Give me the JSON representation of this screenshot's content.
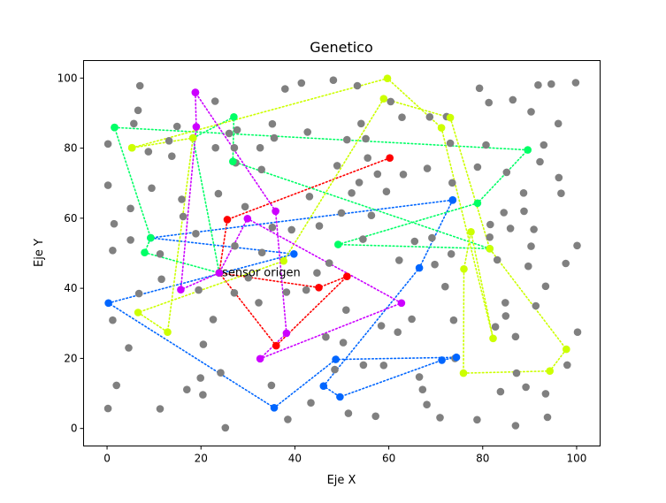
{
  "chart_data": {
    "type": "scatter",
    "title": "Genetico",
    "xlabel": "Eje X",
    "ylabel": "Eje Y",
    "xlim": [
      -5,
      105
    ],
    "ylim": [
      -5,
      105
    ],
    "xticks": [
      0,
      20,
      40,
      60,
      80,
      100
    ],
    "yticks": [
      0,
      20,
      40,
      60,
      80,
      100
    ],
    "xtick_labels": [
      "0",
      "20",
      "40",
      "60",
      "80",
      "100"
    ],
    "ytick_labels": [
      "0",
      "20",
      "40",
      "60",
      "80",
      "100"
    ],
    "grid": false,
    "annotations": [
      {
        "text": "sensor origen",
        "x": 24.5,
        "y": 44.5
      }
    ],
    "sensors": {
      "color": "#808080",
      "points": [
        [
          0.2,
          81.2
        ],
        [
          0.2,
          69.4
        ],
        [
          0.2,
          5.7
        ],
        [
          1.2,
          50.8
        ],
        [
          1.5,
          58.4
        ],
        [
          1.2,
          30.9
        ],
        [
          2,
          12.3
        ],
        [
          4.6,
          23
        ],
        [
          5,
          53.8
        ],
        [
          5,
          62.8
        ],
        [
          5.7,
          87
        ],
        [
          6.6,
          90.8
        ],
        [
          7,
          97.8
        ],
        [
          6.8,
          38.5
        ],
        [
          8.8,
          79
        ],
        [
          9.5,
          68.6
        ],
        [
          11.3,
          49.8
        ],
        [
          11.6,
          42.6
        ],
        [
          11.3,
          5.6
        ],
        [
          13.2,
          82.1
        ],
        [
          13.8,
          77.7
        ],
        [
          14.9,
          86.2
        ],
        [
          15.9,
          65.4
        ],
        [
          16.2,
          60.5
        ],
        [
          17,
          11.1
        ],
        [
          18.9,
          55.6
        ],
        [
          19.5,
          39.5
        ],
        [
          19.9,
          14.4
        ],
        [
          20.5,
          24
        ],
        [
          20.4,
          9.6
        ],
        [
          22.6,
          31.1
        ],
        [
          23,
          93.4
        ],
        [
          23.1,
          80.1
        ],
        [
          23.7,
          67
        ],
        [
          24.2,
          15.9
        ],
        [
          25.2,
          0.2
        ],
        [
          26,
          84.2
        ],
        [
          27.1,
          80.1
        ],
        [
          27.1,
          38.7
        ],
        [
          27.2,
          52.1
        ],
        [
          27.4,
          75.8
        ],
        [
          27.7,
          85.2
        ],
        [
          29.4,
          63.3
        ],
        [
          30.1,
          43
        ],
        [
          32.3,
          35.9
        ],
        [
          32.6,
          80.1
        ],
        [
          32.9,
          73.9
        ],
        [
          33,
          50.2
        ],
        [
          35.2,
          86.9
        ],
        [
          35.6,
          82.9
        ],
        [
          35.2,
          57.4
        ],
        [
          35,
          12.3
        ],
        [
          37.9,
          96.9
        ],
        [
          38.2,
          38.9
        ],
        [
          38.5,
          2.6
        ],
        [
          39.3,
          56.7
        ],
        [
          41.4,
          98.6
        ],
        [
          42.4,
          39.5
        ],
        [
          42.7,
          84.6
        ],
        [
          43.1,
          66.2
        ],
        [
          43.4,
          7.3
        ],
        [
          44.7,
          44.4
        ],
        [
          45.2,
          57.8
        ],
        [
          46.6,
          26.1
        ],
        [
          47.3,
          47.2
        ],
        [
          48.2,
          99.4
        ],
        [
          48.5,
          16.8
        ],
        [
          49,
          75
        ],
        [
          49.9,
          61.5
        ],
        [
          50.3,
          24.5
        ],
        [
          50.9,
          33.8
        ],
        [
          51.1,
          82.4
        ],
        [
          51.4,
          4.3
        ],
        [
          52.1,
          67.2
        ],
        [
          53.3,
          97.8
        ],
        [
          53.7,
          70.2
        ],
        [
          54.1,
          87
        ],
        [
          54.5,
          54
        ],
        [
          54.6,
          18.1
        ],
        [
          55.1,
          82.7
        ],
        [
          55.5,
          77.2
        ],
        [
          56.3,
          60.8
        ],
        [
          57.2,
          3.5
        ],
        [
          57.6,
          72.6
        ],
        [
          58.4,
          29.3
        ],
        [
          58.9,
          18
        ],
        [
          59.5,
          67.6
        ],
        [
          60.4,
          93.3
        ],
        [
          61.9,
          27.5
        ],
        [
          62.2,
          48
        ],
        [
          62.8,
          88.8
        ],
        [
          63.1,
          72.5
        ],
        [
          64.9,
          31.2
        ],
        [
          65.5,
          53.4
        ],
        [
          66.5,
          14.7
        ],
        [
          67.2,
          11.1
        ],
        [
          68.1,
          6.8
        ],
        [
          68.7,
          88.9
        ],
        [
          68.2,
          74.2
        ],
        [
          69.2,
          54.4
        ],
        [
          69.8,
          46.8
        ],
        [
          70.9,
          3.1
        ],
        [
          72,
          40.5
        ],
        [
          72.3,
          89
        ],
        [
          73.1,
          81.4
        ],
        [
          73.5,
          70.1
        ],
        [
          73.8,
          30.9
        ],
        [
          73.3,
          49.8
        ],
        [
          74.1,
          20
        ],
        [
          78.9,
          74.6
        ],
        [
          79.3,
          97.1
        ],
        [
          78.8,
          2.5
        ],
        [
          80.7,
          80.9
        ],
        [
          81.3,
          93
        ],
        [
          81.5,
          54.6
        ],
        [
          81.6,
          58.2
        ],
        [
          82.7,
          29
        ],
        [
          83.1,
          48.1
        ],
        [
          83.8,
          10.5
        ],
        [
          84.5,
          61.6
        ],
        [
          84.8,
          35.9
        ],
        [
          84.9,
          32.1
        ],
        [
          85.1,
          73.1
        ],
        [
          85.9,
          57.1
        ],
        [
          86.4,
          93.8
        ],
        [
          87,
          0.8
        ],
        [
          87,
          26.2
        ],
        [
          87.2,
          15.8
        ],
        [
          88.7,
          67.2
        ],
        [
          88.8,
          62
        ],
        [
          89.2,
          11.8
        ],
        [
          89.7,
          46.3
        ],
        [
          90.3,
          90.4
        ],
        [
          90.3,
          52
        ],
        [
          90.9,
          56.8
        ],
        [
          91.3,
          35
        ],
        [
          91.8,
          98
        ],
        [
          92.2,
          76.1
        ],
        [
          93,
          80.9
        ],
        [
          93.4,
          40.6
        ],
        [
          93.4,
          9.9
        ],
        [
          93.8,
          3.2
        ],
        [
          94.6,
          98.3
        ],
        [
          96.1,
          87
        ],
        [
          96.2,
          71.6
        ],
        [
          96.7,
          67.1
        ],
        [
          97.7,
          47.1
        ],
        [
          98,
          18.1
        ],
        [
          99.8,
          98.7
        ],
        [
          100.1,
          52.2
        ],
        [
          100.2,
          27.5
        ]
      ]
    },
    "series": [
      {
        "color": "#ff0000",
        "points": [
          [
            60.2,
            77.2
          ],
          [
            25.6,
            59.6
          ],
          [
            23.9,
            44.4
          ],
          [
            45.1,
            40.2
          ],
          [
            51.1,
            43.4
          ],
          [
            36,
            23.6
          ],
          [
            23.9,
            44.4
          ]
        ]
      },
      {
        "color": "#0066ff",
        "points": [
          [
            73.6,
            65.2
          ],
          [
            9.3,
            54.4
          ],
          [
            39.8,
            49.8
          ],
          [
            0.3,
            35.8
          ],
          [
            35.6,
            5.9
          ],
          [
            48.7,
            19.7
          ],
          [
            74.4,
            20.3
          ],
          [
            71.3,
            19.5
          ],
          [
            49.6,
            9
          ],
          [
            46.1,
            12.1
          ],
          [
            66.5,
            45.8
          ],
          [
            73.6,
            65.2
          ]
        ]
      },
      {
        "color": "#00ff66",
        "points": [
          [
            1.6,
            85.9
          ],
          [
            89.6,
            79.5
          ],
          [
            78.9,
            64.3
          ],
          [
            49.2,
            52.5
          ],
          [
            81.5,
            51.3
          ],
          [
            26.8,
            76.2
          ],
          [
            27,
            88.9
          ],
          [
            18.3,
            82.9
          ],
          [
            23.9,
            44.4
          ],
          [
            8,
            50.2
          ],
          [
            9.3,
            54.4
          ],
          [
            1.6,
            85.9
          ]
        ]
      },
      {
        "color": "#ccff00",
        "points": [
          [
            5.3,
            80.1
          ],
          [
            59.7,
            99.9
          ],
          [
            71.2,
            85.8
          ],
          [
            82.2,
            25.7
          ],
          [
            77.5,
            56.1
          ],
          [
            76,
            45.5
          ],
          [
            75.9,
            15.8
          ],
          [
            94.3,
            16.4
          ],
          [
            97.8,
            22.6
          ],
          [
            81.5,
            51.3
          ],
          [
            73.1,
            88.7
          ],
          [
            58.9,
            94.1
          ],
          [
            37.6,
            47.8
          ],
          [
            6.6,
            33.1
          ],
          [
            12.9,
            27.5
          ],
          [
            18.3,
            82.9
          ],
          [
            5.3,
            80.1
          ]
        ]
      },
      {
        "color": "#cc00ff",
        "points": [
          [
            18.8,
            95.9
          ],
          [
            19,
            86.1
          ],
          [
            15.7,
            39.6
          ],
          [
            23.9,
            44.4
          ],
          [
            29.9,
            59.9
          ],
          [
            62.7,
            35.8
          ],
          [
            32.6,
            19.9
          ],
          [
            38.2,
            27.2
          ],
          [
            35.9,
            62
          ],
          [
            18.8,
            95.9
          ]
        ]
      }
    ]
  }
}
